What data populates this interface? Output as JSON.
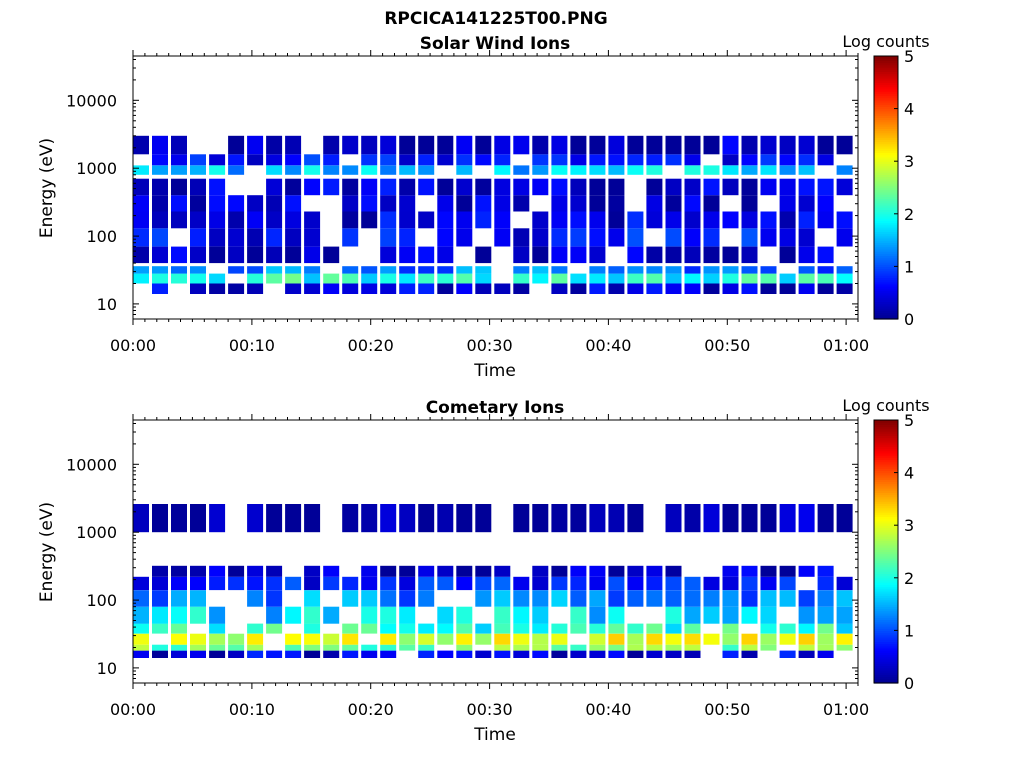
{
  "figure": {
    "title": "RPCICA141225T00.PNG",
    "colorbar_label": "Log counts",
    "colorbar_ticks": [
      "0",
      "1",
      "2",
      "3",
      "4",
      "5"
    ],
    "colormap": [
      "#00008f",
      "#0000ff",
      "#007fff",
      "#00ffff",
      "#7fff7f",
      "#ffff00",
      "#ff7f00",
      "#ff0000",
      "#7f0000"
    ]
  },
  "chart_data": [
    {
      "type": "heatmap",
      "title": "Solar Wind Ions",
      "xlabel": "Time",
      "ylabel": "Energy (eV)",
      "x_ticks": [
        "00:00",
        "00:10",
        "00:20",
        "00:30",
        "00:40",
        "00:50",
        "01:00"
      ],
      "y_ticks": [
        "10",
        "100",
        "1000",
        "10000"
      ],
      "xlim": [
        "00:00",
        "01:01"
      ],
      "ylim": [
        6,
        45000
      ],
      "y_scale": "log",
      "z_range": [
        0,
        5
      ],
      "scan_period_min": 3.2,
      "bands": [
        {
          "e_min": 14,
          "e_max": 20,
          "z": 0.5
        },
        {
          "e_min": 20,
          "e_max": 28,
          "z": 2.0
        },
        {
          "e_min": 28,
          "e_max": 36,
          "z": 1.2
        },
        {
          "e_min": 40,
          "e_max": 70,
          "z": 0.3
        },
        {
          "e_min": 70,
          "e_max": 130,
          "z": 0.6
        },
        {
          "e_min": 130,
          "e_max": 230,
          "z": 0.4
        },
        {
          "e_min": 230,
          "e_max": 400,
          "z": 0.3
        },
        {
          "e_min": 400,
          "e_max": 700,
          "z": 0.35
        },
        {
          "e_min": 800,
          "e_max": 1100,
          "z": 1.6
        },
        {
          "e_min": 1100,
          "e_max": 1600,
          "z": 0.6
        },
        {
          "e_min": 1600,
          "e_max": 3000,
          "z": 0.2
        }
      ]
    },
    {
      "type": "heatmap",
      "title": "Cometary Ions",
      "xlabel": "Time",
      "ylabel": "Energy (eV)",
      "x_ticks": [
        "00:00",
        "00:10",
        "00:20",
        "00:30",
        "00:40",
        "00:50",
        "01:00"
      ],
      "y_ticks": [
        "10",
        "100",
        "1000",
        "10000"
      ],
      "xlim": [
        "00:00",
        "01:01"
      ],
      "ylim": [
        6,
        45000
      ],
      "y_scale": "log",
      "z_range": [
        0,
        5
      ],
      "scan_period_min": 3.2,
      "bands": [
        {
          "e_min": 14,
          "e_max": 18,
          "z": 0.4
        },
        {
          "e_min": 18,
          "e_max": 22,
          "z": 2.4
        },
        {
          "e_min": 22,
          "e_max": 32,
          "z": 3.0
        },
        {
          "e_min": 32,
          "e_max": 45,
          "z": 2.0
        },
        {
          "e_min": 45,
          "e_max": 80,
          "z": 1.7
        },
        {
          "e_min": 80,
          "e_max": 140,
          "z": 1.3
        },
        {
          "e_min": 140,
          "e_max": 220,
          "z": 0.7
        },
        {
          "e_min": 220,
          "e_max": 320,
          "z": 0.3
        },
        {
          "e_min": 1000,
          "e_max": 2600,
          "z": 0.15
        }
      ]
    }
  ]
}
